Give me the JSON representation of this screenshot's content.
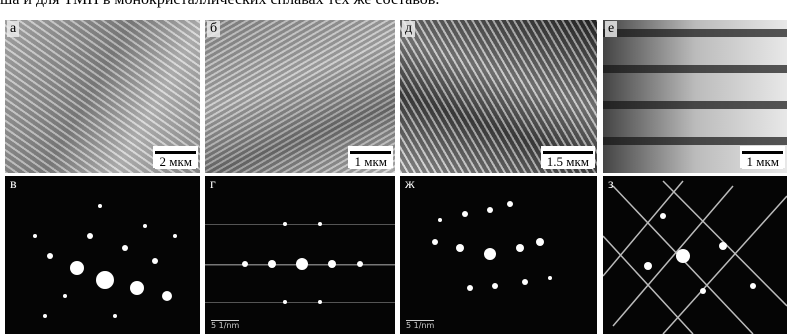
{
  "header": {
    "text": "ша и для ТМП в монокристаллических сплавах тех же составов."
  },
  "panels": [
    {
      "label": "а",
      "scale_bar": "2 мкм"
    },
    {
      "label": "б",
      "scale_bar": "1 мкм"
    },
    {
      "label": "д",
      "scale_bar": "1.5 мкм"
    },
    {
      "label": "е",
      "scale_bar": "1 мкм"
    },
    {
      "label": "в"
    },
    {
      "label": "г",
      "scale_label": "5 1/nm"
    },
    {
      "label": "ж",
      "scale_label": "5 1/nm"
    },
    {
      "label": "з"
    }
  ]
}
